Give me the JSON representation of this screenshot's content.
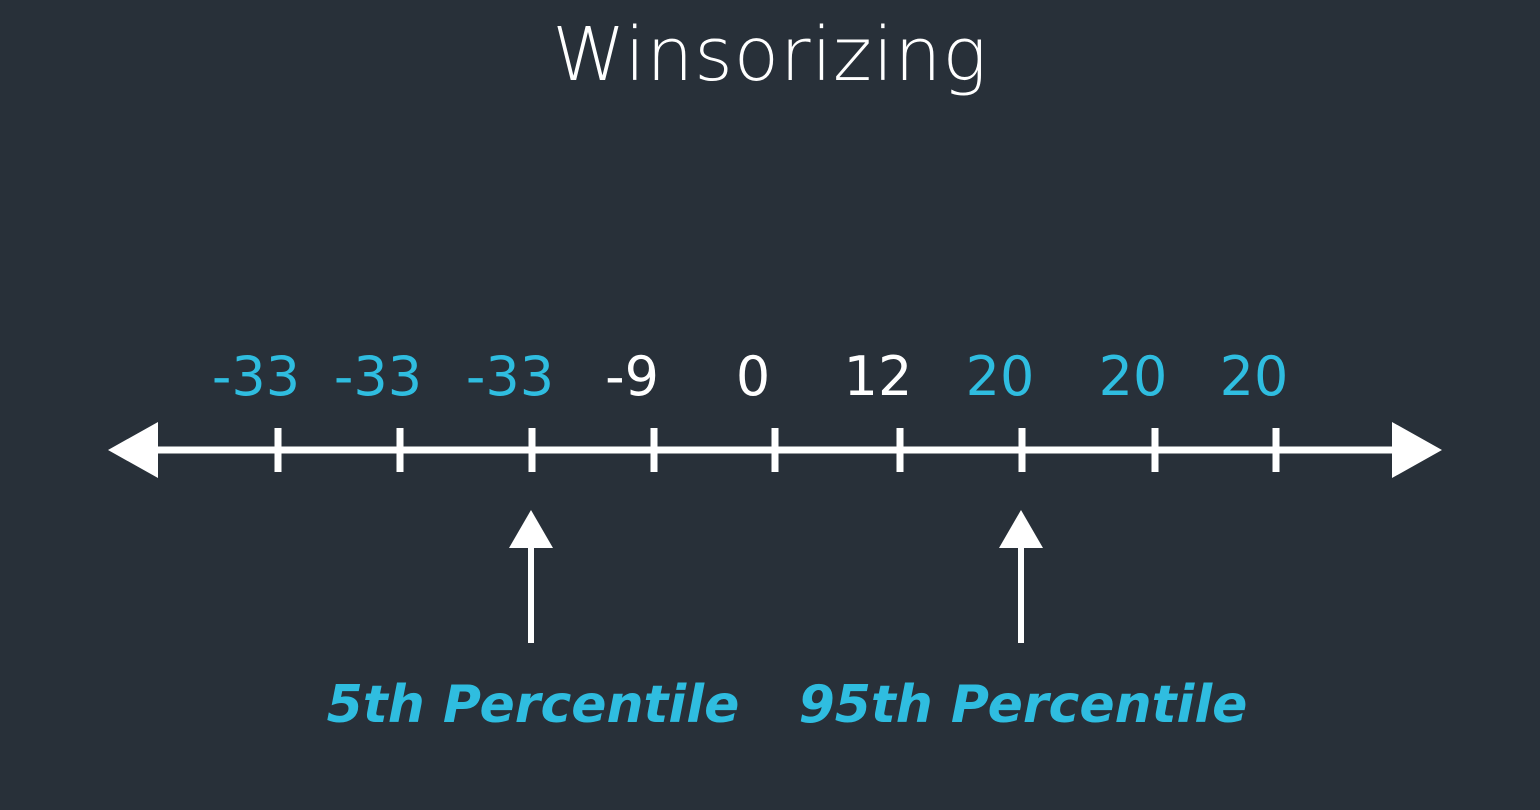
{
  "title": "Winsorizing",
  "colors": {
    "background": "#283039",
    "line": "#ffffff",
    "highlight": "#2fbde0",
    "normal_value": "#ffffff"
  },
  "values": [
    {
      "label": "-33",
      "highlighted": true
    },
    {
      "label": "-33",
      "highlighted": true
    },
    {
      "label": "-33",
      "highlighted": true
    },
    {
      "label": "-9",
      "highlighted": false
    },
    {
      "label": "0",
      "highlighted": false
    },
    {
      "label": "12",
      "highlighted": false
    },
    {
      "label": "20",
      "highlighted": true
    },
    {
      "label": "20",
      "highlighted": true
    },
    {
      "label": "20",
      "highlighted": true
    }
  ],
  "markers": [
    {
      "label": "5th Percentile",
      "value_index": 2
    },
    {
      "label": "95th Percentile",
      "value_index": 6
    }
  ]
}
